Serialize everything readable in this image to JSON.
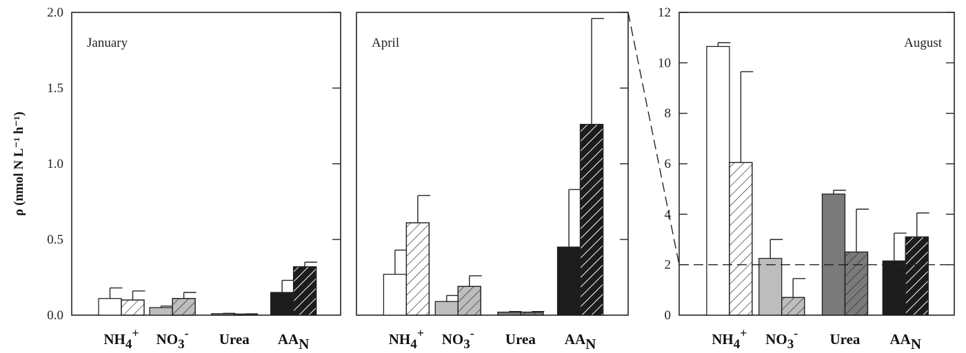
{
  "chart_data": {
    "type": "bar",
    "ylabel": "ρ (nmol N L⁻¹ h⁻¹)",
    "categories": [
      "NH4+",
      "NO3-",
      "Urea",
      "AAN"
    ],
    "category_fill_colors": [
      "#ffffff",
      "#bdbdbd",
      "#7a7a7a",
      "#1c1c1c"
    ],
    "hatch_colors": [
      "#222222",
      "#222222",
      "#222222",
      "#ffffff"
    ],
    "reference_line": {
      "panel": "August",
      "y": 2
    },
    "panels": [
      {
        "label": "January",
        "ylim": [
          0,
          2.0
        ],
        "yticks": [
          "0.0",
          "0.5",
          "1.0",
          "1.5",
          "2.0"
        ],
        "show_y_ticklabels": true,
        "series": [
          {
            "values": [
              0.11,
              0.05,
              0.01,
              0.15
            ],
            "errors": [
              0.07,
              0.01,
              0.002,
              0.08
            ]
          },
          {
            "values": [
              0.1,
              0.11,
              0.007,
              0.32
            ],
            "errors": [
              0.06,
              0.04,
              0.002,
              0.03
            ]
          }
        ]
      },
      {
        "label": "April",
        "ylim": [
          0,
          2.0
        ],
        "yticks": [
          "0.0",
          "0.5",
          "1.0",
          "1.5",
          "2.0"
        ],
        "show_y_ticklabels": false,
        "series": [
          {
            "values": [
              0.27,
              0.09,
              0.02,
              0.45
            ],
            "errors": [
              0.16,
              0.04,
              0.004,
              0.38
            ]
          },
          {
            "values": [
              0.61,
              0.19,
              0.02,
              1.26
            ],
            "errors": [
              0.18,
              0.07,
              0.004,
              0.7
            ]
          }
        ]
      },
      {
        "label": "August",
        "ylim": [
          0,
          12
        ],
        "yticks": [
          "0",
          "2",
          "4",
          "6",
          "8",
          "10",
          "12"
        ],
        "show_y_ticklabels": true,
        "series": [
          {
            "values": [
              10.65,
              2.25,
              4.8,
              2.15
            ],
            "errors": [
              0.15,
              0.75,
              0.15,
              1.1
            ]
          },
          {
            "values": [
              6.05,
              0.7,
              2.5,
              3.1
            ],
            "errors": [
              3.6,
              0.75,
              1.7,
              0.95
            ]
          }
        ]
      }
    ]
  }
}
